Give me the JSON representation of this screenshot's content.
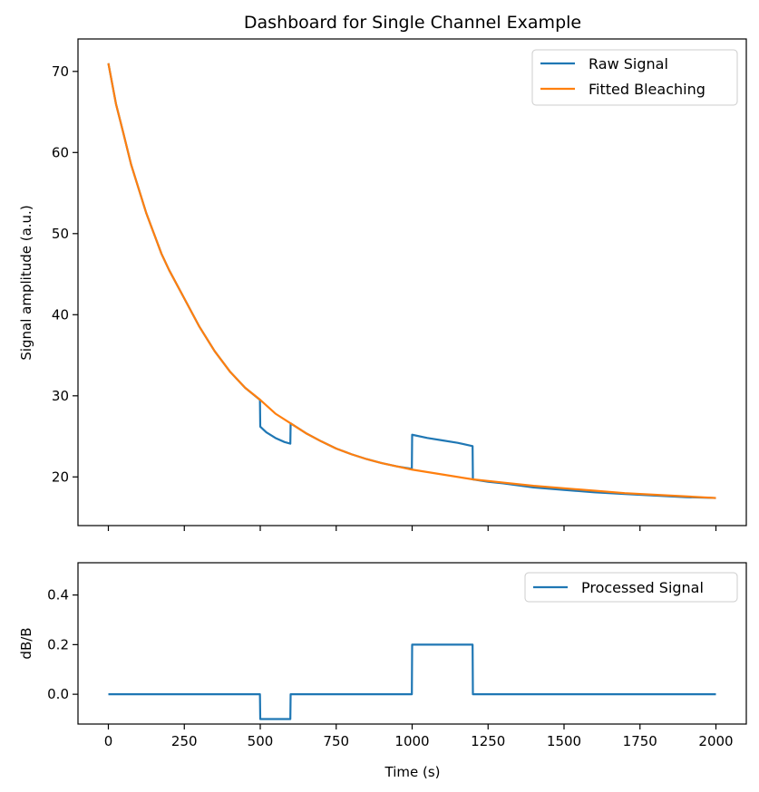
{
  "chart_data": [
    {
      "type": "line",
      "title": "Dashboard for Single Channel Example",
      "xlabel": "",
      "ylabel": "Signal amplitude (a.u.)",
      "xlim": [
        -100,
        2100
      ],
      "ylim": [
        14,
        74
      ],
      "x_ticks": [
        0,
        250,
        500,
        750,
        1000,
        1250,
        1500,
        1750,
        2000
      ],
      "x_tick_labels_shown": false,
      "y_ticks": [
        20,
        30,
        40,
        50,
        60,
        70
      ],
      "y_tick_labels": [
        "20",
        "30",
        "40",
        "50",
        "60",
        "70"
      ],
      "legend_position": "top-right",
      "series": [
        {
          "name": "Raw Signal",
          "color": "#1f77b4",
          "x": [
            0,
            25,
            50,
            75,
            100,
            125,
            150,
            175,
            200,
            250,
            300,
            350,
            400,
            450,
            499,
            500,
            520,
            550,
            580,
            599,
            600,
            650,
            700,
            750,
            800,
            850,
            900,
            950,
            999,
            1000,
            1050,
            1100,
            1150,
            1199,
            1200,
            1250,
            1300,
            1400,
            1500,
            1600,
            1700,
            1800,
            1900,
            2000
          ],
          "y": [
            71.0,
            66.0,
            62.3,
            58.5,
            55.5,
            52.5,
            50.0,
            47.5,
            45.5,
            42.0,
            38.5,
            35.5,
            33.0,
            31.0,
            29.5,
            26.2,
            25.5,
            24.8,
            24.3,
            24.1,
            26.6,
            25.4,
            24.4,
            23.5,
            22.8,
            22.2,
            21.7,
            21.3,
            21.0,
            25.2,
            24.8,
            24.5,
            24.2,
            23.8,
            19.7,
            19.4,
            19.2,
            18.7,
            18.4,
            18.1,
            17.9,
            17.7,
            17.5,
            17.4
          ]
        },
        {
          "name": "Fitted Bleaching",
          "color": "#ff7f0e",
          "x": [
            0,
            25,
            50,
            75,
            100,
            125,
            150,
            175,
            200,
            250,
            300,
            350,
            400,
            450,
            500,
            550,
            600,
            650,
            700,
            750,
            800,
            850,
            900,
            950,
            1000,
            1100,
            1200,
            1300,
            1400,
            1500,
            1600,
            1700,
            1800,
            1900,
            2000
          ],
          "y": [
            71.0,
            66.0,
            62.3,
            58.5,
            55.5,
            52.5,
            50.0,
            47.5,
            45.5,
            42.0,
            38.5,
            35.5,
            33.0,
            31.0,
            29.5,
            27.8,
            26.6,
            25.4,
            24.4,
            23.5,
            22.8,
            22.2,
            21.7,
            21.3,
            20.9,
            20.3,
            19.7,
            19.3,
            18.9,
            18.6,
            18.3,
            18.0,
            17.8,
            17.6,
            17.4
          ]
        }
      ]
    },
    {
      "type": "line",
      "title": "",
      "xlabel": "Time (s)",
      "ylabel": "dB/B",
      "xlim": [
        -100,
        2100
      ],
      "ylim": [
        -0.12,
        0.53
      ],
      "x_ticks": [
        0,
        250,
        500,
        750,
        1000,
        1250,
        1500,
        1750,
        2000
      ],
      "x_tick_labels": [
        "0",
        "250",
        "500",
        "750",
        "1000",
        "1250",
        "1500",
        "1750",
        "2000"
      ],
      "y_ticks": [
        0.0,
        0.2,
        0.4
      ],
      "y_tick_labels": [
        "0.0",
        "0.2",
        "0.4"
      ],
      "legend_position": "top-right",
      "series": [
        {
          "name": "Processed Signal",
          "color": "#1f77b4",
          "x": [
            0,
            499,
            500,
            599,
            600,
            999,
            1000,
            1199,
            1200,
            2000
          ],
          "y": [
            0.0,
            0.0,
            -0.1,
            -0.1,
            0.0,
            0.0,
            0.2,
            0.2,
            0.0,
            0.0
          ]
        }
      ]
    }
  ]
}
